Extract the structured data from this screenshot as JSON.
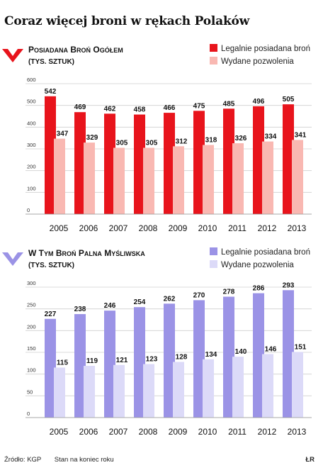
{
  "title": "Coraz więcej broni w rękach Polaków",
  "source": "Źródło: KGP",
  "note": "Stan na koniec roku",
  "credit": "ŁR",
  "chart_data": [
    {
      "type": "bar",
      "title": "Posiadana broń ogółem",
      "subtitle": "(tys. sztuk)",
      "categories": [
        "2005",
        "2006",
        "2007",
        "2008",
        "2009",
        "2010",
        "2011",
        "2012",
        "2013"
      ],
      "series": [
        {
          "name": "Legalnie posiadana broń",
          "values": [
            542,
            469,
            462,
            458,
            466,
            475,
            485,
            496,
            505
          ],
          "color": "#e8141c"
        },
        {
          "name": "Wydane pozwolenia",
          "values": [
            347,
            329,
            305,
            305,
            312,
            318,
            326,
            334,
            341
          ],
          "color": "#f9b8b2"
        }
      ],
      "ylim": [
        0,
        600
      ],
      "yticks": [
        0,
        100,
        200,
        300,
        400,
        500,
        600
      ],
      "arrow_color": "#e8141c",
      "grid": true
    },
    {
      "type": "bar",
      "title": "W tym broń palna myśliwska",
      "subtitle": "(tys. sztuk)",
      "categories": [
        "2005",
        "2006",
        "2007",
        "2008",
        "2009",
        "2010",
        "2011",
        "2012",
        "2013"
      ],
      "series": [
        {
          "name": "Legalnie posiadana broń",
          "values": [
            227,
            238,
            246,
            254,
            262,
            270,
            278,
            286,
            293
          ],
          "color": "#9b93e6"
        },
        {
          "name": "Wydane pozwolenia",
          "values": [
            115,
            119,
            121,
            123,
            128,
            134,
            140,
            146,
            151
          ],
          "color": "#dcdaf8"
        }
      ],
      "ylim": [
        0,
        300
      ],
      "yticks": [
        0,
        50,
        100,
        150,
        200,
        250,
        300
      ],
      "arrow_color": "#9b93e6",
      "grid": true
    }
  ]
}
